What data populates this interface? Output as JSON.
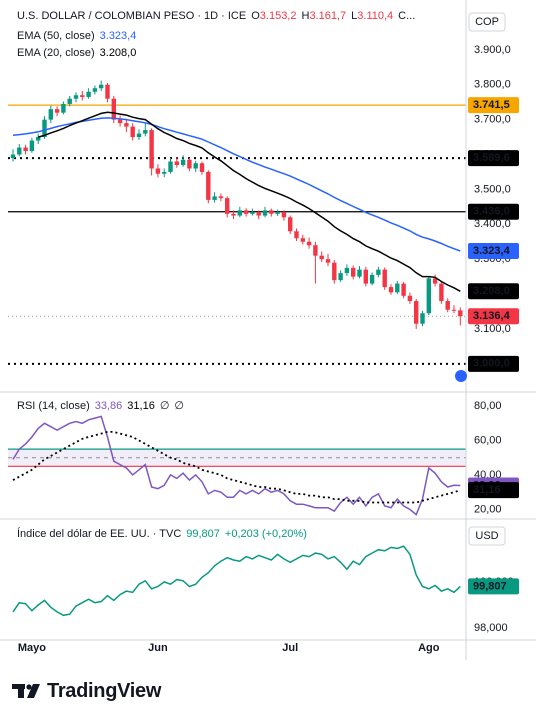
{
  "footer": {
    "brand": "TradingView"
  },
  "chart_data": [
    {
      "type": "candlestick",
      "title": "U.S. DOLLAR / COLOMBIAN PESO · 1D · ICE",
      "currency": "COP",
      "ohlc_legend": [
        {
          "key": "O",
          "value": "3.153,2"
        },
        {
          "key": "H",
          "value": "3.161,7"
        },
        {
          "key": "L",
          "value": "3.110,4"
        },
        {
          "key": "C..."
        }
      ],
      "up_color": "#089981",
      "down_color": "#f23645",
      "categories": [
        null,
        null,
        null,
        "Mayo",
        null,
        null,
        null,
        null,
        null,
        null,
        null,
        null,
        null,
        null,
        null,
        null,
        null,
        null,
        null,
        null,
        null,
        null,
        null,
        "Jun",
        null,
        null,
        null,
        null,
        null,
        null,
        null,
        null,
        null,
        null,
        null,
        null,
        null,
        null,
        null,
        null,
        null,
        null,
        null,
        null,
        "Jul",
        null,
        null,
        null,
        null,
        null,
        null,
        null,
        null,
        null,
        null,
        null,
        null,
        null,
        null,
        null,
        null,
        null,
        null,
        null,
        null,
        null,
        "Ago",
        null,
        null,
        null,
        null,
        null
      ],
      "ohlc": [
        [
          3590,
          3615,
          3580,
          3600
        ],
        [
          3600,
          3630,
          3595,
          3620
        ],
        [
          3620,
          3628,
          3600,
          3610
        ],
        [
          3610,
          3648,
          3605,
          3640
        ],
        [
          3640,
          3660,
          3630,
          3650
        ],
        [
          3650,
          3710,
          3645,
          3700
        ],
        [
          3700,
          3740,
          3690,
          3730
        ],
        [
          3730,
          3738,
          3710,
          3720
        ],
        [
          3720,
          3752,
          3715,
          3745
        ],
        [
          3745,
          3768,
          3738,
          3760
        ],
        [
          3760,
          3778,
          3750,
          3770
        ],
        [
          3770,
          3782,
          3755,
          3765
        ],
        [
          3765,
          3790,
          3760,
          3780
        ],
        [
          3780,
          3798,
          3772,
          3790
        ],
        [
          3790,
          3812,
          3782,
          3800
        ],
        [
          3800,
          3805,
          3750,
          3760
        ],
        [
          3760,
          3768,
          3690,
          3700
        ],
        [
          3700,
          3712,
          3680,
          3690
        ],
        [
          3690,
          3700,
          3665,
          3680
        ],
        [
          3680,
          3690,
          3640,
          3650
        ],
        [
          3650,
          3672,
          3642,
          3660
        ],
        [
          3660,
          3690,
          3652,
          3670
        ],
        [
          3670,
          3675,
          3540,
          3560
        ],
        [
          3560,
          3572,
          3535,
          3545
        ],
        [
          3545,
          3560,
          3535,
          3550
        ],
        [
          3550,
          3590,
          3545,
          3580
        ],
        [
          3580,
          3592,
          3562,
          3570
        ],
        [
          3570,
          3598,
          3565,
          3585
        ],
        [
          3585,
          3590,
          3552,
          3560
        ],
        [
          3560,
          3582,
          3550,
          3575
        ],
        [
          3575,
          3580,
          3542,
          3550
        ],
        [
          3550,
          3555,
          3460,
          3470
        ],
        [
          3470,
          3492,
          3462,
          3480
        ],
        [
          3480,
          3488,
          3466,
          3475
        ],
        [
          3475,
          3480,
          3420,
          3430
        ],
        [
          3430,
          3440,
          3415,
          3425
        ],
        [
          3425,
          3450,
          3420,
          3440
        ],
        [
          3440,
          3446,
          3422,
          3430
        ],
        [
          3430,
          3445,
          3425,
          3435
        ],
        [
          3435,
          3440,
          3415,
          3425
        ],
        [
          3425,
          3450,
          3420,
          3440
        ],
        [
          3440,
          3445,
          3422,
          3430
        ],
        [
          3430,
          3442,
          3424,
          3435
        ],
        [
          3435,
          3440,
          3410,
          3420
        ],
        [
          3420,
          3425,
          3372,
          3380
        ],
        [
          3380,
          3388,
          3352,
          3360
        ],
        [
          3360,
          3370,
          3342,
          3350
        ],
        [
          3350,
          3362,
          3330,
          3340
        ],
        [
          3340,
          3350,
          3230,
          3310
        ],
        [
          3310,
          3322,
          3292,
          3300
        ],
        [
          3300,
          3315,
          3280,
          3290
        ],
        [
          3290,
          3298,
          3230,
          3240
        ],
        [
          3240,
          3268,
          3235,
          3260
        ],
        [
          3260,
          3285,
          3252,
          3275
        ],
        [
          3275,
          3282,
          3242,
          3250
        ],
        [
          3250,
          3280,
          3245,
          3270
        ],
        [
          3270,
          3278,
          3222,
          3230
        ],
        [
          3230,
          3262,
          3225,
          3255
        ],
        [
          3255,
          3278,
          3248,
          3270
        ],
        [
          3270,
          3276,
          3212,
          3220
        ],
        [
          3220,
          3228,
          3198,
          3205
        ],
        [
          3205,
          3238,
          3200,
          3230
        ],
        [
          3230,
          3235,
          3188,
          3195
        ],
        [
          3195,
          3204,
          3172,
          3180
        ],
        [
          3180,
          3186,
          3100,
          3115
        ],
        [
          3115,
          3152,
          3108,
          3145
        ],
        [
          3145,
          3252,
          3140,
          3245
        ],
        [
          3245,
          3256,
          3222,
          3230
        ],
        [
          3230,
          3236,
          3172,
          3180
        ],
        [
          3180,
          3188,
          3148,
          3155
        ],
        [
          3155,
          3168,
          3145,
          3153
        ],
        [
          3153.2,
          3161.7,
          3110.4,
          3136.4
        ]
      ],
      "last_label": "3.136,4",
      "series": [
        {
          "name": "EMA (50, close)",
          "color": "#2962ff",
          "last_label": "3.323,4",
          "values": [
            3655,
            3657,
            3659,
            3662,
            3665,
            3670,
            3675,
            3680,
            3684,
            3688,
            3692,
            3695,
            3698,
            3701,
            3704,
            3705,
            3704,
            3702,
            3700,
            3697,
            3694,
            3691,
            3686,
            3680,
            3674,
            3669,
            3664,
            3659,
            3654,
            3649,
            3644,
            3636,
            3628,
            3620,
            3611,
            3602,
            3594,
            3586,
            3578,
            3571,
            3564,
            3558,
            3551,
            3545,
            3538,
            3530,
            3522,
            3514,
            3505,
            3496,
            3487,
            3477,
            3468,
            3460,
            3451,
            3443,
            3434,
            3427,
            3420,
            3412,
            3404,
            3397,
            3389,
            3381,
            3371,
            3363,
            3358,
            3352,
            3345,
            3337,
            3330,
            3323.4
          ]
        },
        {
          "name": "EMA (20, close)",
          "color": "#000000",
          "last_label": "3.208,0",
          "values": [
            null,
            null,
            null,
            null,
            3650,
            3655,
            3662,
            3668,
            3675,
            3683,
            3690,
            3697,
            3704,
            3711,
            3718,
            3721,
            3719,
            3716,
            3713,
            3707,
            3703,
            3700,
            3687,
            3674,
            3663,
            3655,
            3646,
            3640,
            3632,
            3626,
            3619,
            3605,
            3593,
            3582,
            3568,
            3554,
            3543,
            3531,
            3521,
            3511,
            3503,
            3496,
            3489,
            3482,
            3474,
            3464,
            3455,
            3445,
            3433,
            3421,
            3409,
            3393,
            3381,
            3371,
            3359,
            3350,
            3338,
            3330,
            3323,
            3313,
            3303,
            3296,
            3286,
            3276,
            3261,
            3250,
            3250,
            3248,
            3236,
            3226,
            3218,
            3208.0
          ]
        }
      ],
      "levels": [
        {
          "value": 3741.5,
          "label": "3.741,5",
          "color": "#f7a600",
          "text_color": "#131722",
          "style": "solid"
        },
        {
          "value": 3589.6,
          "label": "3.589,6",
          "color": "#000000",
          "text_color": "#ffffff",
          "style": "dotted"
        },
        {
          "value": 3436.0,
          "label": "3.436,0",
          "color": "#000000",
          "text_color": "#ffffff",
          "style": "solid"
        },
        {
          "value": 3000.0,
          "label": "3.000,0",
          "color": "#000000",
          "text_color": "#ffffff",
          "style": "dotted"
        }
      ],
      "ylim": [
        2925,
        4020
      ],
      "yticks": [
        {
          "value": 3000,
          "label": "3.000,0"
        },
        {
          "value": 3100,
          "label": "3.100,0"
        },
        {
          "value": 3200,
          "label": "3.200,0"
        },
        {
          "value": 3300,
          "label": "3.300,0"
        },
        {
          "value": 3400,
          "label": "3.400,0"
        },
        {
          "value": 3500,
          "label": "3.500,0"
        },
        {
          "value": 3600,
          "label": "3.600,0"
        },
        {
          "value": 3700,
          "label": "3.700,0"
        },
        {
          "value": 3800,
          "label": "3.800,0"
        },
        {
          "value": 3900,
          "label": "3.900,0"
        }
      ]
    },
    {
      "type": "line",
      "title": "RSI (14, close)",
      "legend_extra": [
        "∅",
        "∅"
      ],
      "bands": [
        {
          "value": 55,
          "color": "#089981",
          "style": "solid"
        },
        {
          "value": 50,
          "color": "#9598a1",
          "style": "dashed"
        },
        {
          "value": 45,
          "color": "#f23645",
          "style": "solid"
        }
      ],
      "band_fill": "#7e57c2",
      "series": [
        {
          "color": "#7e57c2",
          "style": "solid",
          "last_label": "33,86",
          "values": [
            49,
            55,
            58,
            62,
            67,
            70,
            68,
            66,
            68,
            70,
            71,
            70,
            72,
            73,
            74,
            62,
            48,
            46,
            44,
            40,
            43,
            46,
            33,
            32,
            34,
            40,
            38,
            41,
            37,
            40,
            36,
            29,
            31,
            30,
            27,
            27,
            31,
            29,
            31,
            29,
            32,
            30,
            31,
            29,
            25,
            23,
            23,
            22,
            21,
            21,
            21,
            19,
            24,
            27,
            23,
            27,
            22,
            27,
            29,
            22,
            21,
            26,
            22,
            20,
            17,
            26,
            44,
            41,
            36,
            33,
            34,
            33.86
          ]
        },
        {
          "color": "#000000",
          "style": "dotted",
          "last_label": "31,16",
          "values": [
            37,
            39,
            41,
            43,
            46,
            49,
            51,
            53,
            55,
            57,
            59,
            61,
            62,
            63,
            64,
            65,
            65,
            64,
            63,
            62,
            60,
            58,
            56,
            54,
            52,
            50,
            49,
            47,
            46,
            45,
            43,
            42,
            41,
            40,
            38,
            37,
            36,
            35,
            34,
            33,
            33,
            32,
            32,
            31,
            30,
            29,
            29,
            28,
            28,
            27,
            27,
            26,
            26,
            25,
            25,
            25,
            24,
            24,
            24,
            24,
            24,
            24,
            24,
            24,
            24,
            25,
            26,
            27,
            28,
            29,
            30,
            31.16
          ]
        }
      ],
      "ylim": [
        15,
        86.4
      ],
      "yticks": [
        {
          "value": 20,
          "label": "20,00"
        },
        {
          "value": 40,
          "label": "40,00"
        },
        {
          "value": 60,
          "label": "60,00"
        },
        {
          "value": 80,
          "label": "80,00"
        }
      ]
    },
    {
      "type": "line",
      "title": "Índice del dólar de EE. UU. · TVC",
      "currency": "USD",
      "legend_extra": [
        "+0,203 (+0,20%)"
      ],
      "series": [
        {
          "color": "#089981",
          "style": "solid",
          "last_label": "99,807",
          "values": [
            98.7,
            99.1,
            99.05,
            98.75,
            99.0,
            99.2,
            98.9,
            98.7,
            98.55,
            98.6,
            98.95,
            99.1,
            99.25,
            99.1,
            99.15,
            99.4,
            99.2,
            99.45,
            99.6,
            99.55,
            99.9,
            100.05,
            99.7,
            99.8,
            100.0,
            99.9,
            100.1,
            100.05,
            99.8,
            99.9,
            100.2,
            100.4,
            100.7,
            100.9,
            101.05,
            100.95,
            100.9,
            101.1,
            101.0,
            101.15,
            101.05,
            100.95,
            101.2,
            101.0,
            100.85,
            101.0,
            101.15,
            101.1,
            101.25,
            101.2,
            101.0,
            101.1,
            100.85,
            100.55,
            100.9,
            100.75,
            101.1,
            101.25,
            101.4,
            101.35,
            101.5,
            101.45,
            101.55,
            101.2,
            100.3,
            99.8,
            99.7,
            99.85,
            99.6,
            99.7,
            99.55,
            99.807
          ]
        }
      ],
      "ylim": [
        97.48,
        102.6
      ],
      "yticks": [
        {
          "value": 98,
          "label": "98,000"
        },
        {
          "value": 100,
          "label": "100,000"
        }
      ]
    }
  ]
}
